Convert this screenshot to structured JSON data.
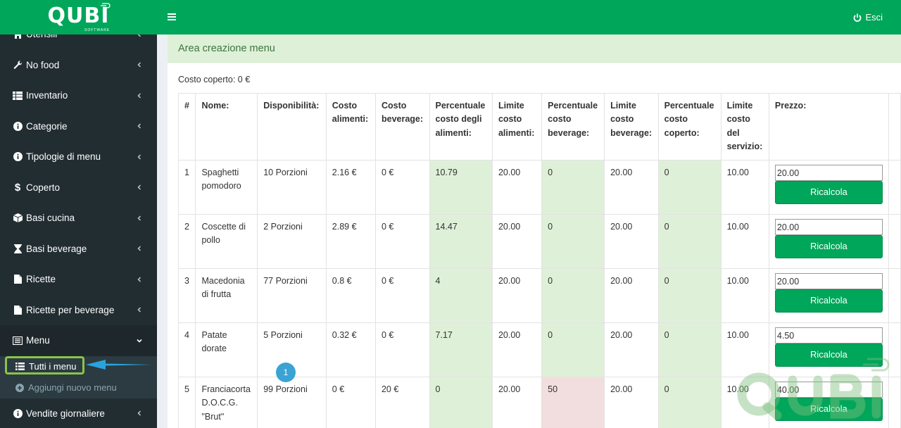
{
  "brand": {
    "name": "QUBI",
    "tagline": "SOFTWARE"
  },
  "header": {
    "logout_label": "Esci"
  },
  "sidebar": {
    "items": [
      {
        "label": "Utensili",
        "icon": "home-icon"
      },
      {
        "label": "No food",
        "icon": "wrench-icon"
      },
      {
        "label": "Inventario",
        "icon": "table-icon"
      },
      {
        "label": "Categorie",
        "icon": "info-icon"
      },
      {
        "label": "Tipologie di menu",
        "icon": "info-icon"
      },
      {
        "label": "Coperto",
        "icon": "dollar-icon"
      },
      {
        "label": "Basi cucina",
        "icon": "cube-icon"
      },
      {
        "label": "Basi beverage",
        "icon": "hourglass-icon"
      },
      {
        "label": "Ricette",
        "icon": "file-icon"
      },
      {
        "label": "Ricette per beverage",
        "icon": "file-icon"
      },
      {
        "label": "Menu",
        "icon": "list-icon"
      },
      {
        "label": "Vendite giornaliere",
        "icon": "info-icon"
      }
    ],
    "submenu": [
      {
        "label": "Tutti i menu"
      },
      {
        "label": "Aggiungi nuovo menu"
      }
    ]
  },
  "main": {
    "box_title": "Area creazione menu",
    "coperto_text": "Costo coperto: 0 €",
    "table": {
      "headers": [
        "#",
        "Nome:",
        "Disponibilità:",
        "Costo alimenti:",
        "Costo beverage:",
        "Percentuale costo degli alimenti:",
        "Limite costo alimenti:",
        "Percentuale costo beverage:",
        "Limite costo beverage:",
        "Percentuale costo coperto:",
        "Limite costo del servizio:",
        "Prezzo:"
      ],
      "rows": [
        {
          "n": "1",
          "nome": "Spaghetti pomodoro",
          "disp": "10 Porzioni",
          "ca": "2.16 €",
          "cb": "0 €",
          "pca": "10.79",
          "lca": "20.00",
          "pcb": "0",
          "lcb": "20.00",
          "pcc": "0",
          "lcs": "10.00",
          "prezzo": "20.00"
        },
        {
          "n": "2",
          "nome": "Coscette di pollo",
          "disp": "2 Porzioni",
          "ca": "2.89 €",
          "cb": "0 €",
          "pca": "14.47",
          "lca": "20.00",
          "pcb": "0",
          "lcb": "20.00",
          "pcc": "0",
          "lcs": "10.00",
          "prezzo": "20.00"
        },
        {
          "n": "3",
          "nome": "Macedonia di frutta",
          "disp": "77 Porzioni",
          "ca": "0.8 €",
          "cb": "0 €",
          "pca": "4",
          "lca": "20.00",
          "pcb": "0",
          "lcb": "20.00",
          "pcc": "0",
          "lcs": "10.00",
          "prezzo": "20.00"
        },
        {
          "n": "4",
          "nome": "Patate dorate",
          "disp": "5 Porzioni",
          "ca": "0.32 €",
          "cb": "0 €",
          "pca": "7.17",
          "lca": "20.00",
          "pcb": "0",
          "lcb": "20.00",
          "pcc": "0",
          "lcs": "10.00",
          "prezzo": "4.50"
        },
        {
          "n": "5",
          "nome": "Franciacorta D.O.C.G. \"Brut\"",
          "disp": "99 Porzioni",
          "ca": "0 €",
          "cb": "20 €",
          "pca": "0",
          "lca": "20.00",
          "pcb": "50",
          "lcb": "20.00",
          "pcc": "0",
          "lcs": "10.00",
          "prezzo": "40.00"
        }
      ],
      "recalc_label": "Ricalcola"
    }
  },
  "annotation": {
    "step": "1"
  },
  "colors": {
    "brand_green": "#00a65a",
    "sidebar_bg": "#222d32",
    "ok_cell": "#dff0d8",
    "warn_cell": "#f2dede"
  }
}
